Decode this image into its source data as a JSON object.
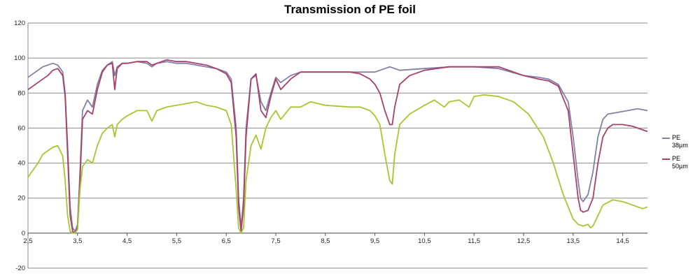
{
  "chart_data": {
    "type": "line",
    "title": "Transmission of PE foil",
    "xlabel": "",
    "ylabel": "",
    "xlim": [
      2.5,
      15.0
    ],
    "ylim": [
      -20,
      120
    ],
    "x_ticks": [
      "2,5",
      "3,5",
      "4,5",
      "5,5",
      "6,5",
      "7,5",
      "8,5",
      "9,5",
      "10,5",
      "11,5",
      "12,5",
      "13,5",
      "14,5"
    ],
    "x_tick_values": [
      2.5,
      3.5,
      4.5,
      5.5,
      6.5,
      7.5,
      8.5,
      9.5,
      10.5,
      11.5,
      12.5,
      13.5,
      14.5
    ],
    "y_ticks": [
      -20,
      0,
      20,
      40,
      60,
      80,
      100,
      120
    ],
    "grid": "horizontal",
    "legend_position": "right",
    "series": [
      {
        "name": "PE\n38µm",
        "color": "#8080aa",
        "x": [
          2.5,
          2.6,
          2.7,
          2.8,
          2.9,
          3.0,
          3.1,
          3.2,
          3.25,
          3.3,
          3.35,
          3.4,
          3.45,
          3.5,
          3.55,
          3.6,
          3.7,
          3.8,
          3.9,
          4.0,
          4.1,
          4.2,
          4.25,
          4.3,
          4.4,
          4.5,
          4.7,
          4.9,
          5.0,
          5.1,
          5.3,
          5.5,
          5.7,
          5.9,
          6.1,
          6.3,
          6.5,
          6.6,
          6.7,
          6.75,
          6.8,
          6.85,
          6.9,
          7.0,
          7.1,
          7.2,
          7.3,
          7.4,
          7.5,
          7.6,
          7.8,
          8.0,
          8.5,
          9.0,
          9.5,
          9.7,
          9.8,
          9.9,
          10.0,
          10.5,
          11.0,
          11.5,
          12.0,
          12.5,
          12.8,
          13.0,
          13.2,
          13.4,
          13.5,
          13.6,
          13.65,
          13.7,
          13.8,
          13.9,
          14.0,
          14.1,
          14.2,
          14.4,
          14.6,
          14.8,
          15.0
        ],
        "y": [
          89,
          91,
          93,
          95,
          96,
          97,
          96,
          92,
          80,
          50,
          15,
          3,
          1,
          5,
          35,
          70,
          76,
          72,
          85,
          93,
          96,
          98,
          90,
          95,
          97,
          97,
          98,
          97,
          95,
          97,
          98,
          97,
          97,
          96,
          95,
          94,
          92,
          88,
          60,
          20,
          3,
          20,
          60,
          88,
          90,
          75,
          70,
          80,
          89,
          86,
          90,
          92,
          92,
          92,
          92,
          94,
          95,
          94,
          93,
          94,
          95,
          95,
          94,
          90,
          89,
          88,
          85,
          75,
          55,
          30,
          20,
          18,
          22,
          35,
          55,
          65,
          68,
          69,
          70,
          71,
          70
        ]
      },
      {
        "name": "PE\n50µm",
        "color": "#a8406a",
        "x": [
          2.5,
          2.6,
          2.7,
          2.8,
          2.9,
          3.0,
          3.1,
          3.2,
          3.25,
          3.3,
          3.35,
          3.4,
          3.45,
          3.5,
          3.55,
          3.6,
          3.7,
          3.8,
          3.9,
          4.0,
          4.1,
          4.2,
          4.25,
          4.3,
          4.4,
          4.5,
          4.7,
          4.9,
          5.0,
          5.1,
          5.3,
          5.5,
          5.7,
          5.9,
          6.1,
          6.3,
          6.5,
          6.6,
          6.7,
          6.75,
          6.8,
          6.85,
          6.9,
          7.0,
          7.1,
          7.2,
          7.3,
          7.4,
          7.5,
          7.6,
          7.8,
          8.0,
          8.5,
          9.0,
          9.2,
          9.4,
          9.5,
          9.6,
          9.7,
          9.8,
          9.85,
          9.9,
          10.0,
          10.2,
          10.5,
          11.0,
          11.5,
          12.0,
          12.5,
          12.8,
          13.0,
          13.2,
          13.4,
          13.5,
          13.6,
          13.65,
          13.7,
          13.8,
          13.9,
          14.0,
          14.1,
          14.2,
          14.3,
          14.5,
          14.7,
          14.9,
          15.0
        ],
        "y": [
          82,
          84,
          86,
          88,
          90,
          93,
          94,
          90,
          78,
          45,
          10,
          1,
          0,
          3,
          30,
          65,
          70,
          68,
          82,
          92,
          96,
          97,
          82,
          94,
          97,
          97,
          98,
          98,
          96,
          97,
          99,
          98,
          98,
          97,
          96,
          94,
          91,
          86,
          55,
          15,
          1,
          15,
          55,
          88,
          91,
          70,
          66,
          78,
          88,
          82,
          88,
          92,
          92,
          92,
          91,
          88,
          85,
          80,
          70,
          62,
          62,
          72,
          85,
          90,
          93,
          95,
          95,
          95,
          90,
          88,
          87,
          84,
          70,
          45,
          20,
          13,
          12,
          13,
          20,
          40,
          55,
          60,
          62,
          62,
          61,
          59,
          58
        ]
      },
      {
        "name": "",
        "color": "#a6c630",
        "x": [
          2.5,
          2.6,
          2.7,
          2.8,
          2.9,
          3.0,
          3.1,
          3.2,
          3.25,
          3.3,
          3.35,
          3.4,
          3.45,
          3.5,
          3.55,
          3.6,
          3.7,
          3.8,
          3.9,
          4.0,
          4.1,
          4.2,
          4.25,
          4.3,
          4.4,
          4.5,
          4.7,
          4.9,
          5.0,
          5.1,
          5.3,
          5.5,
          5.7,
          5.9,
          6.1,
          6.3,
          6.5,
          6.6,
          6.7,
          6.75,
          6.8,
          6.85,
          6.9,
          7.0,
          7.1,
          7.2,
          7.3,
          7.4,
          7.5,
          7.6,
          7.8,
          8.0,
          8.2,
          8.5,
          9.0,
          9.2,
          9.4,
          9.5,
          9.6,
          9.7,
          9.8,
          9.85,
          9.9,
          10.0,
          10.2,
          10.5,
          10.7,
          10.9,
          11.0,
          11.2,
          11.4,
          11.5,
          11.7,
          12.0,
          12.3,
          12.6,
          12.9,
          13.1,
          13.3,
          13.5,
          13.6,
          13.7,
          13.8,
          13.85,
          13.9,
          14.0,
          14.1,
          14.3,
          14.5,
          14.7,
          14.9,
          15.0
        ],
        "y": [
          32,
          36,
          40,
          45,
          47,
          49,
          50,
          44,
          30,
          10,
          1,
          0,
          0,
          2,
          25,
          38,
          42,
          40,
          50,
          57,
          60,
          62,
          55,
          62,
          65,
          67,
          70,
          70,
          64,
          70,
          72,
          73,
          74,
          75,
          73,
          72,
          70,
          62,
          25,
          3,
          0,
          3,
          30,
          50,
          56,
          48,
          60,
          66,
          70,
          65,
          72,
          72,
          75,
          73,
          72,
          72,
          70,
          67,
          62,
          45,
          30,
          28,
          45,
          62,
          68,
          73,
          76,
          72,
          75,
          76,
          72,
          78,
          79,
          78,
          75,
          68,
          55,
          40,
          22,
          8,
          5,
          4,
          5,
          3,
          4,
          10,
          16,
          19,
          18,
          16,
          14,
          15
        ]
      }
    ]
  }
}
